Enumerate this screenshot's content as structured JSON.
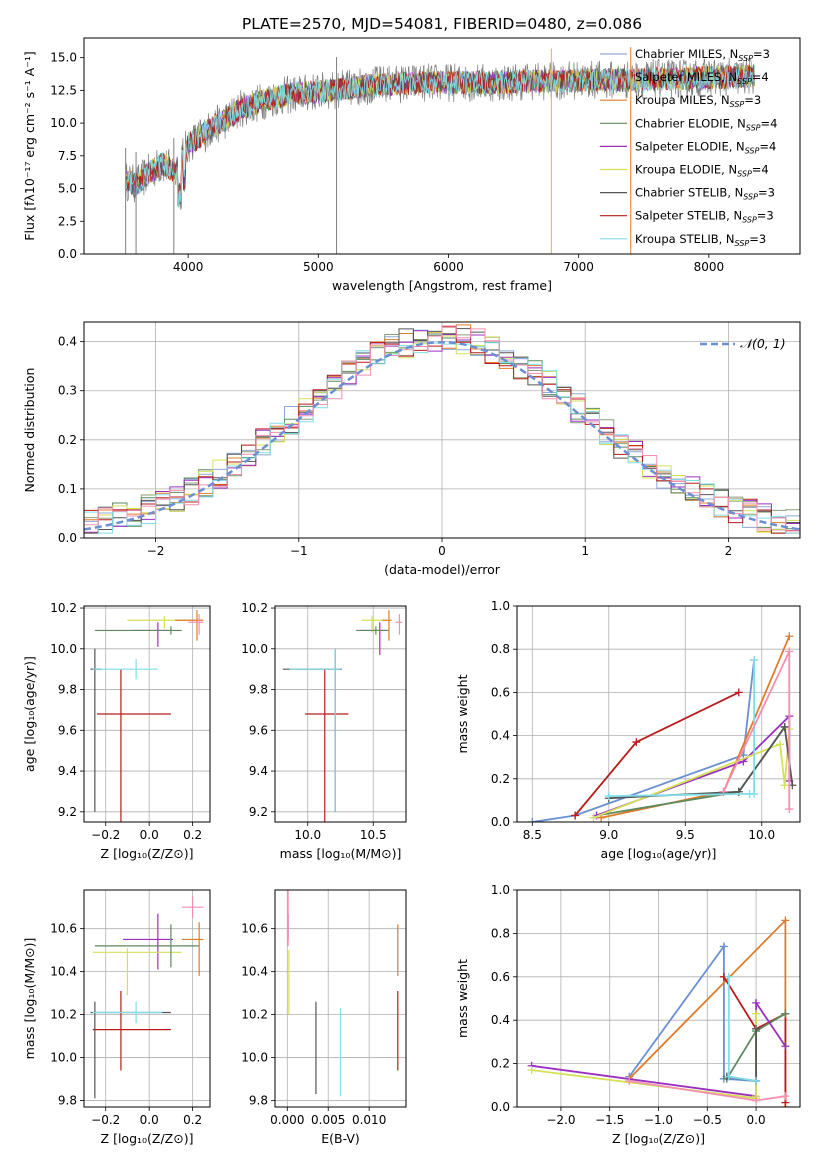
{
  "figure": {
    "title": "PLATE=2570, MJD=54081, FIBERID=0480, z=0.086"
  },
  "chart_data": [
    {
      "id": "spectrum",
      "type": "line",
      "xlabel": "wavelength [Angstrom, rest frame]",
      "ylabel": "Flux [fλ10⁻¹⁷ erg cm⁻² s⁻¹ A⁻¹]",
      "xlim": [
        3200,
        8700
      ],
      "ylim": [
        0,
        16.5
      ],
      "xticks": [
        4000,
        5000,
        6000,
        7000,
        8000
      ],
      "yticks": [
        0.0,
        2.5,
        5.0,
        7.5,
        10.0,
        12.5,
        15.0
      ],
      "grid": false,
      "legend_position": "right",
      "data_grey": "#7f7f7f",
      "spectrum_envelope": {
        "x": [
          3520,
          3600,
          3700,
          3800,
          3900,
          4000,
          4100,
          4200,
          4300,
          4400,
          4500,
          4600,
          4700,
          4800,
          4900,
          5000,
          5200,
          5400,
          5600,
          5800,
          6000,
          6200,
          6400,
          6600,
          6800,
          7000,
          7200,
          7400,
          7600,
          7800,
          8000,
          8200,
          8350
        ],
        "y": [
          5.6,
          5.3,
          6.2,
          6.9,
          6.3,
          8.4,
          9.0,
          9.8,
          10.3,
          11.1,
          11.4,
          11.8,
          12.0,
          12.2,
          12.3,
          12.4,
          12.6,
          12.9,
          13.0,
          13.1,
          13.1,
          13.1,
          13.1,
          13.2,
          13.2,
          13.3,
          13.3,
          13.3,
          13.4,
          13.4,
          13.5,
          13.5,
          13.6
        ]
      },
      "legend": [
        {
          "label": "Chabrier MILES, N",
          "sub": "SSP",
          "tail": "=3",
          "color": "#8fa8d8"
        },
        {
          "label": "Salpeter MILES, N",
          "sub": "SSP",
          "tail": "=4",
          "color": "#8aa07a"
        },
        {
          "label": "Kroupa MILES, N",
          "sub": "SSP",
          "tail": "=3",
          "color": "#e07b2a"
        },
        {
          "label": "Chabrier ELODIE, N",
          "sub": "SSP",
          "tail": "=4",
          "color": "#5f8a5f"
        },
        {
          "label": "Salpeter ELODIE, N",
          "sub": "SSP",
          "tail": "=4",
          "color": "#9b30c0"
        },
        {
          "label": "Kroupa ELODIE, N",
          "sub": "SSP",
          "tail": "=4",
          "color": "#d4e157"
        },
        {
          "label": "Chabrier STELIB, N",
          "sub": "SSP",
          "tail": "=3",
          "color": "#555555"
        },
        {
          "label": "Salpeter STELIB, N",
          "sub": "SSP",
          "tail": "=3",
          "color": "#b71c1c"
        },
        {
          "label": "Kroupa STELIB, N",
          "sub": "SSP",
          "tail": "=3",
          "color": "#80deea"
        }
      ],
      "spikes": [
        {
          "x": 3520,
          "ylow": 0.0
        },
        {
          "x": 3600,
          "ylow": 0.0
        },
        {
          "x": 3890,
          "ylow": 0.0
        },
        {
          "x": 5140,
          "ylow": 0.0
        },
        {
          "x": 6790,
          "ylow": 0.0
        },
        {
          "x": 7400,
          "ylow": 0.0
        }
      ]
    },
    {
      "id": "residuals",
      "type": "histogram",
      "xlabel": "(data-model)/error",
      "ylabel": "Normed distribution",
      "xlim": [
        -2.5,
        2.5
      ],
      "ylim": [
        0,
        0.44
      ],
      "xticks": [
        -2,
        -1,
        0,
        1,
        2
      ],
      "yticks": [
        0.0,
        0.1,
        0.2,
        0.3,
        0.4
      ],
      "grid": true,
      "legend_position": "top-right",
      "gaussian": {
        "label": "𝒩(0, 1)",
        "mean": 0,
        "sigma": 1,
        "color": "#6a8fd4"
      },
      "bin_width": 0.1,
      "series_colors": [
        "#8fa8d8",
        "#8aa07a",
        "#e07b2a",
        "#5f8a5f",
        "#9b30c0",
        "#d4e157",
        "#555555",
        "#b71c1c",
        "#80deea",
        "#f48fb1"
      ]
    },
    {
      "id": "age-vs-metallicity",
      "type": "errorbar",
      "xlabel": "Z [log₁₀(Z/Z⊙)]",
      "ylabel": "age  [log₁₀(age/yr)]",
      "xlim": [
        -0.3,
        0.28
      ],
      "ylim": [
        9.15,
        10.21
      ],
      "xticks": [
        -0.2,
        0.0,
        0.2
      ],
      "yticks": [
        9.2,
        9.4,
        9.6,
        9.8,
        10.0,
        10.2
      ],
      "grid": true,
      "points": [
        {
          "x": -0.13,
          "y": 9.68,
          "xerr": [
            0.11,
            0.23
          ],
          "yerr": [
            0.53,
            0.22
          ],
          "color": "#b71c1c"
        },
        {
          "x": -0.25,
          "y": 9.9,
          "xerr": [
            0.02,
            0.03
          ],
          "yerr": [
            0.7,
            0.1
          ],
          "color": "#555555"
        },
        {
          "x": -0.06,
          "y": 9.9,
          "xerr": [
            0.2,
            0.1
          ],
          "yerr": [
            0.05,
            0.05
          ],
          "color": "#80deea"
        },
        {
          "x": 0.04,
          "y": 10.09,
          "xerr": [
            0.12,
            0.05
          ],
          "yerr": [
            0.08,
            0.04
          ],
          "color": "#9b30c0"
        },
        {
          "x": 0.07,
          "y": 10.14,
          "xerr": [
            0.17,
            0.15
          ],
          "yerr": [
            0.04,
            0.02
          ],
          "color": "#d4e157"
        },
        {
          "x": 0.1,
          "y": 10.09,
          "xerr": [
            0.35,
            0.05
          ],
          "yerr": [
            0.02,
            0.02
          ],
          "color": "#5f8a5f"
        },
        {
          "x": 0.22,
          "y": 10.14,
          "xerr": [
            0.1,
            0.03
          ],
          "yerr": [
            0.1,
            0.05
          ],
          "color": "#e07b2a"
        },
        {
          "x": 0.23,
          "y": 10.13,
          "xerr": [
            0.05,
            0.02
          ],
          "yerr": [
            0.06,
            0.04
          ],
          "color": "#f48fb1"
        }
      ]
    },
    {
      "id": "age-vs-mass",
      "type": "errorbar",
      "xlabel": "mass [log₁₀(M/M⊙)]",
      "ylabel": "",
      "xlim": [
        9.75,
        10.75
      ],
      "ylim": [
        9.15,
        10.21
      ],
      "xticks": [
        10.0,
        10.5
      ],
      "yticks": [
        9.2,
        9.4,
        9.6,
        9.8,
        10.0,
        10.2
      ],
      "grid": true,
      "points": [
        {
          "x": 10.13,
          "y": 9.68,
          "xerr": [
            0.15,
            0.18
          ],
          "yerr": [
            0.53,
            0.22
          ],
          "color": "#b71c1c"
        },
        {
          "x": 10.21,
          "y": 9.9,
          "xerr": [
            0.4,
            0.05
          ],
          "yerr": [
            0.7,
            0.1
          ],
          "color": "#555555"
        },
        {
          "x": 10.21,
          "y": 9.9,
          "xerr": [
            0.35,
            0.04
          ],
          "yerr": [
            0.7,
            0.1
          ],
          "color": "#80deea"
        },
        {
          "x": 10.55,
          "y": 10.09,
          "xerr": [
            0.15,
            0.05
          ],
          "yerr": [
            0.12,
            0.04
          ],
          "color": "#9b30c0"
        },
        {
          "x": 10.49,
          "y": 10.14,
          "xerr": [
            0.08,
            0.12
          ],
          "yerr": [
            0.06,
            0.02
          ],
          "color": "#d4e157"
        },
        {
          "x": 10.52,
          "y": 10.09,
          "xerr": [
            0.15,
            0.1
          ],
          "yerr": [
            0.02,
            0.02
          ],
          "color": "#5f8a5f"
        },
        {
          "x": 10.62,
          "y": 10.14,
          "xerr": [
            0.05,
            0.02
          ],
          "yerr": [
            0.1,
            0.05
          ],
          "color": "#e07b2a"
        },
        {
          "x": 10.7,
          "y": 10.13,
          "xerr": [
            0.03,
            0.02
          ],
          "yerr": [
            0.06,
            0.04
          ],
          "color": "#f48fb1"
        }
      ]
    },
    {
      "id": "mass-weight-vs-age",
      "type": "line",
      "xlabel": "age  [log₁₀(age/yr)]",
      "ylabel": "mass weight",
      "xlim": [
        8.4,
        10.25
      ],
      "ylim": [
        0,
        1.0
      ],
      "xticks": [
        8.5,
        9.0,
        9.5,
        10.0
      ],
      "yticks": [
        0.0,
        0.2,
        0.4,
        0.6,
        0.8,
        1.0
      ],
      "grid": true,
      "series": [
        {
          "color": "#6a8fd4",
          "x": [
            8.5,
            8.78,
            9.88,
            9.95
          ],
          "y": [
            0.0,
            0.03,
            0.31,
            0.75
          ]
        },
        {
          "color": "#e07b2a",
          "x": [
            8.95,
            9.75,
            10.18
          ],
          "y": [
            0.02,
            0.14,
            0.86
          ]
        },
        {
          "color": "#b71c1c",
          "x": [
            8.78,
            9.18,
            9.85
          ],
          "y": [
            0.03,
            0.37,
            0.6
          ]
        },
        {
          "color": "#5f8a5f",
          "x": [
            8.92,
            9.85,
            10.15
          ],
          "y": [
            0.03,
            0.14,
            0.44
          ]
        },
        {
          "color": "#9b30c0",
          "x": [
            8.92,
            9.88,
            10.18,
            10.18
          ],
          "y": [
            0.03,
            0.28,
            0.49,
            0.19
          ]
        },
        {
          "color": "#d4e157",
          "x": [
            8.9,
            10.12,
            10.15,
            10.18
          ],
          "y": [
            0.02,
            0.36,
            0.17,
            0.43
          ]
        },
        {
          "color": "#555555",
          "x": [
            9.0,
            9.85,
            10.15,
            10.2
          ],
          "y": [
            0.11,
            0.14,
            0.44,
            0.17
          ]
        },
        {
          "color": "#80deea",
          "x": [
            9.0,
            9.92,
            9.95,
            9.95
          ],
          "y": [
            0.12,
            0.13,
            0.13,
            0.75
          ]
        },
        {
          "color": "#f48fb1",
          "x": [
            9.75,
            10.18,
            10.18
          ],
          "y": [
            0.14,
            0.79,
            0.06
          ]
        }
      ]
    },
    {
      "id": "mass-vs-metallicity",
      "type": "errorbar",
      "xlabel": "Z [log₁₀(Z/Z⊙)]",
      "ylabel": "mass [log₁₀(M/M⊙)]",
      "xlim": [
        -0.3,
        0.28
      ],
      "ylim": [
        9.77,
        10.78
      ],
      "xticks": [
        -0.2,
        0.0,
        0.2
      ],
      "yticks": [
        9.8,
        10.0,
        10.2,
        10.4,
        10.6
      ],
      "grid": true,
      "points": [
        {
          "x": -0.13,
          "y": 10.13,
          "xerr": [
            0.13,
            0.23
          ],
          "yerr": [
            0.19,
            0.18
          ],
          "color": "#b71c1c"
        },
        {
          "x": -0.25,
          "y": 10.21,
          "xerr": [
            0.02,
            0.35
          ],
          "yerr": [
            0.4,
            0.05
          ],
          "color": "#555555"
        },
        {
          "x": -0.06,
          "y": 10.21,
          "xerr": [
            0.2,
            0.12
          ],
          "yerr": [
            0.05,
            0.05
          ],
          "color": "#80deea"
        },
        {
          "x": 0.04,
          "y": 10.55,
          "xerr": [
            0.16,
            0.07
          ],
          "yerr": [
            0.14,
            0.12
          ],
          "color": "#9b30c0"
        },
        {
          "x": -0.1,
          "y": 10.49,
          "xerr": [
            0.16,
            0.25
          ],
          "yerr": [
            0.2,
            0.02
          ],
          "color": "#d4e157"
        },
        {
          "x": 0.1,
          "y": 10.52,
          "xerr": [
            0.35,
            0.13
          ],
          "yerr": [
            0.1,
            0.1
          ],
          "color": "#5f8a5f"
        },
        {
          "x": 0.23,
          "y": 10.55,
          "xerr": [
            0.08,
            0.02
          ],
          "yerr": [
            0.17,
            0.08
          ],
          "color": "#e07b2a"
        },
        {
          "x": 0.2,
          "y": 10.7,
          "xerr": [
            0.05,
            0.05
          ],
          "yerr": [
            0.05,
            0.05
          ],
          "color": "#f48fb1"
        }
      ]
    },
    {
      "id": "mass-vs-ebv",
      "type": "errorbar",
      "xlabel": "E(B-V)",
      "ylabel": "",
      "xlim": [
        -0.0015,
        0.0145
      ],
      "ylim": [
        9.77,
        10.78
      ],
      "xticks": [
        0.0,
        0.005,
        0.01
      ],
      "yticks": [
        9.8,
        10.0,
        10.2,
        10.4,
        10.6
      ],
      "grid": true,
      "points": [
        {
          "x": 0.0135,
          "y": 10.13,
          "xerr": [
            0,
            0
          ],
          "yerr": [
            0.19,
            0.18
          ],
          "color": "#b71c1c"
        },
        {
          "x": 0.0135,
          "y": 10.5,
          "xerr": [
            0,
            0
          ],
          "yerr": [
            0.12,
            0.12
          ],
          "color": "#e07b2a"
        },
        {
          "x": 0.0035,
          "y": 10.03,
          "xerr": [
            0,
            0
          ],
          "yerr": [
            0.2,
            0.23
          ],
          "color": "#555555"
        },
        {
          "x": 0.0065,
          "y": 10.02,
          "xerr": [
            0,
            0
          ],
          "yerr": [
            0.2,
            0.21
          ],
          "color": "#80deea"
        },
        {
          "x": 0.0001,
          "y": 10.6,
          "xerr": [
            0,
            0
          ],
          "yerr": [
            0.05,
            0.07
          ],
          "color": "#9b30c0"
        },
        {
          "x": 0.0002,
          "y": 10.4,
          "xerr": [
            0,
            0
          ],
          "yerr": [
            0.2,
            0.1
          ],
          "color": "#d4e157"
        },
        {
          "x": 0.0001,
          "y": 10.6,
          "xerr": [
            0,
            0
          ],
          "yerr": [
            0.08,
            0.18
          ],
          "color": "#f48fb1"
        }
      ]
    },
    {
      "id": "mass-weight-vs-metallicity",
      "type": "line",
      "xlabel": "Z [log₁₀(Z/Z⊙)]",
      "ylabel": "mass weight",
      "xlim": [
        -2.45,
        0.45
      ],
      "ylim": [
        0,
        1.0
      ],
      "xticks": [
        -2.0,
        -1.5,
        -1.0,
        -0.5,
        0.0
      ],
      "yticks": [
        0.0,
        0.2,
        0.4,
        0.6,
        0.8,
        1.0
      ],
      "grid": true,
      "series": [
        {
          "color": "#6a8fd4",
          "x": [
            -1.3,
            -0.33,
            -0.33,
            0.0
          ],
          "y": [
            0.14,
            0.74,
            0.13,
            0.12
          ]
        },
        {
          "color": "#e07b2a",
          "x": [
            -1.3,
            0.3,
            0.3
          ],
          "y": [
            0.13,
            0.86,
            0.0
          ]
        },
        {
          "color": "#b71c1c",
          "x": [
            -0.33,
            0.0,
            0.3,
            0.3
          ],
          "y": [
            0.6,
            0.36,
            0.43,
            0.02
          ]
        },
        {
          "color": "#5f8a5f",
          "x": [
            -0.3,
            0.0,
            0.3
          ],
          "y": [
            0.13,
            0.35,
            0.43
          ]
        },
        {
          "color": "#9b30c0",
          "x": [
            -2.3,
            0.0,
            0.0,
            0.3
          ],
          "y": [
            0.19,
            0.05,
            0.48,
            0.28
          ]
        },
        {
          "color": "#d4e157",
          "x": [
            -2.3,
            0.0,
            0.0,
            0.0
          ],
          "y": [
            0.17,
            0.04,
            0.43,
            0.05
          ]
        },
        {
          "color": "#555555",
          "x": [
            -0.3,
            0.0,
            0.0
          ],
          "y": [
            0.14,
            0.12,
            0.36
          ]
        },
        {
          "color": "#80deea",
          "x": [
            -0.28,
            -0.28,
            0.0
          ],
          "y": [
            0.6,
            0.14,
            0.12
          ]
        },
        {
          "color": "#f48fb1",
          "x": [
            -1.3,
            0.0,
            0.3
          ],
          "y": [
            0.12,
            0.03,
            0.05
          ]
        }
      ]
    }
  ]
}
